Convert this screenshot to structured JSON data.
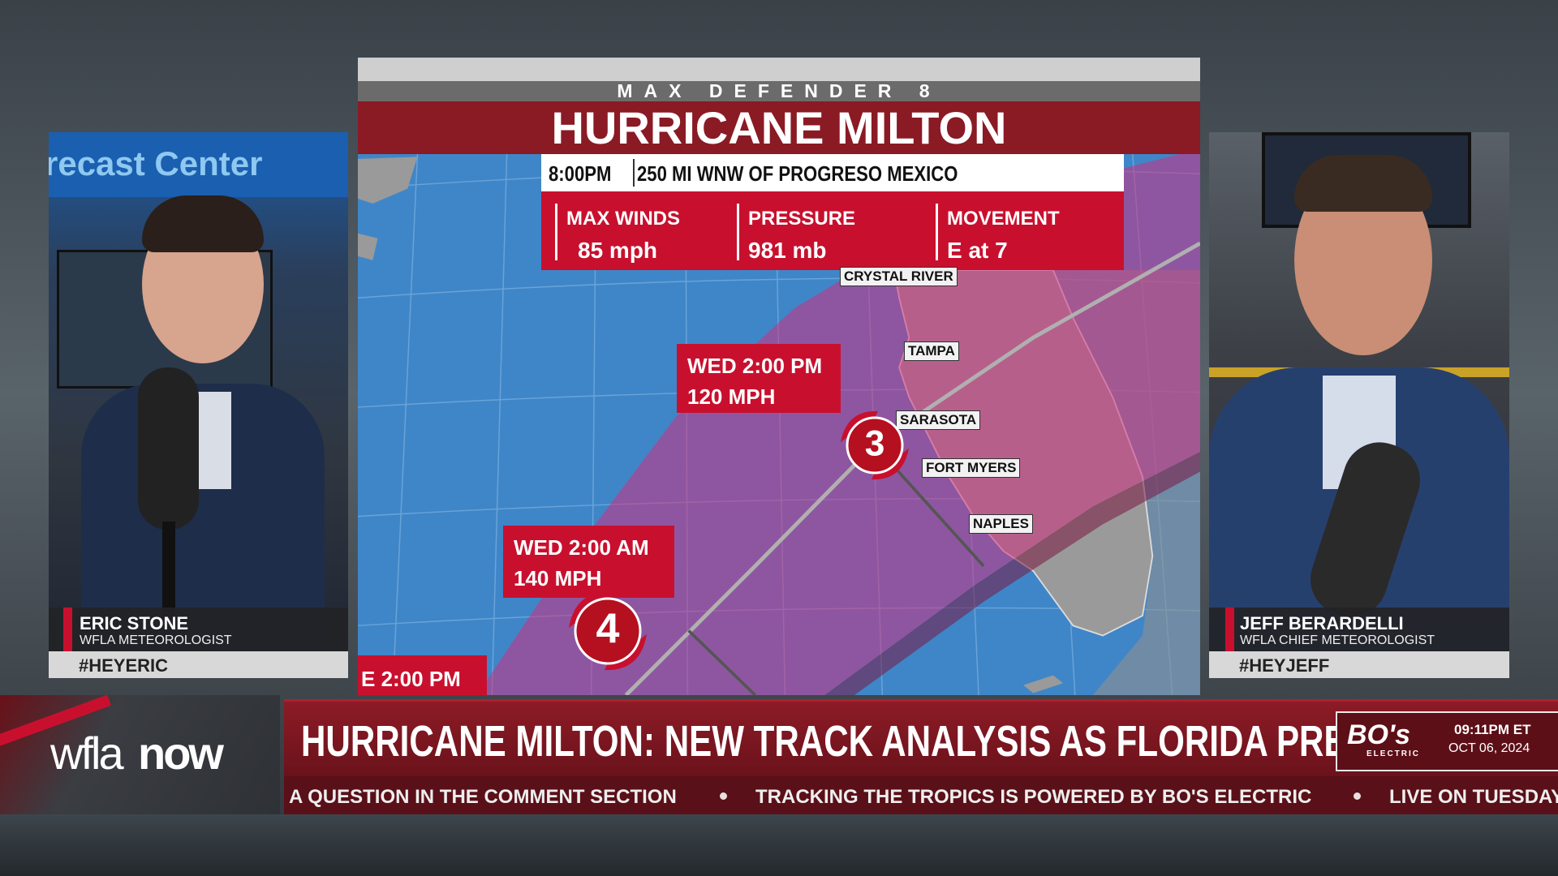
{
  "map": {
    "brand": "MAX DEFENDER 8",
    "title": "HURRICANE MILTON",
    "time": "8:00PM",
    "location": "250 MI WNW OF PROGRESO MEXICO",
    "stats": [
      {
        "label": "MAX WINDS",
        "value": "85 mph"
      },
      {
        "label": "PRESSURE",
        "value": "981 mb"
      },
      {
        "label": "MOVEMENT",
        "value": "E at 7"
      }
    ],
    "cities": [
      "CRYSTAL RIVER",
      "TAMPA",
      "SARASOTA",
      "FORT MYERS",
      "NAPLES"
    ],
    "forecasts": [
      {
        "time": "WED 2:00 PM",
        "speed": "120 MPH"
      },
      {
        "time": "WED 2:00 AM",
        "speed": "140 MPH"
      },
      {
        "time": "E 2:00 PM"
      }
    ],
    "storms": [
      "3",
      "4"
    ]
  },
  "hosts": [
    {
      "name": "ERIC STONE",
      "role": "WFLA METEOROLOGIST",
      "hashtag": "#HEYERIC",
      "backdrop": "recast Center"
    },
    {
      "name": "JEFF BERARDELLI",
      "role": "WFLA CHIEF METEOROLOGIST",
      "hashtag": "#HEYJEFF"
    }
  ],
  "lower_third": {
    "logo": [
      "wfla",
      "now"
    ],
    "headline": "HURRICANE MILTON: NEW TRACK ANALYSIS AS FLORIDA PREPARES",
    "ticker": [
      "A QUESTION IN THE COMMENT SECTION",
      "TRACKING THE TROPICS IS POWERED BY BO'S ELECTRIC",
      "LIVE ON TUESDAY"
    ],
    "sponsor": "BO's",
    "sponsor_sub": "ELECTRIC",
    "time": "09:11PM ET",
    "date": "OCT 06, 2024"
  }
}
